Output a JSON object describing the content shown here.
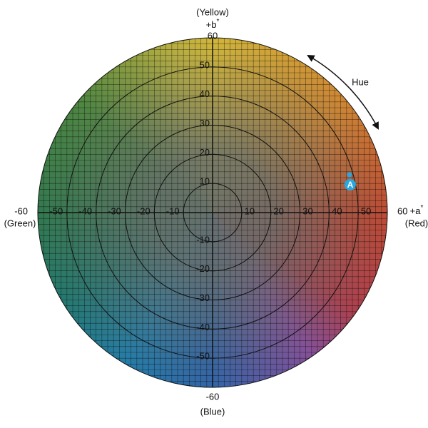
{
  "diagram": {
    "a_axis": {
      "label": "+a",
      "label_sup": "*",
      "positive_note": "(Red)",
      "negative_note": "(Green)",
      "lim": [
        -60,
        60
      ],
      "ticks": [
        -60,
        -50,
        -40,
        -30,
        -20,
        -10,
        10,
        20,
        30,
        40,
        50,
        60
      ]
    },
    "b_axis": {
      "label": "+b",
      "label_sup": "*",
      "positive_note": "(Yellow)",
      "negative_note": "(Blue)",
      "lim": [
        -60,
        60
      ],
      "ticks": [
        -60,
        -50,
        -40,
        -30,
        -20,
        -10,
        10,
        20,
        30,
        40,
        50,
        60
      ]
    },
    "rings": [
      10,
      20,
      30,
      40,
      50
    ],
    "hue_label": "Hue",
    "point": {
      "label": "A",
      "a": 47,
      "b": 13
    }
  }
}
